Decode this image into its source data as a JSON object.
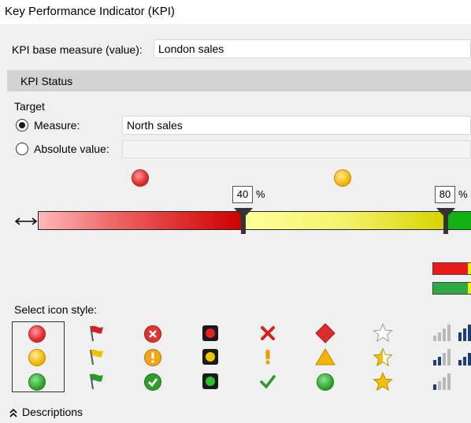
{
  "window": {
    "title": "Key Performance Indicator (KPI)"
  },
  "base_measure": {
    "label": "KPI base measure (value):",
    "value": "London sales"
  },
  "section": {
    "title": "KPI Status"
  },
  "target": {
    "label": "Target",
    "measure_label": "Measure:",
    "measure_value": "North sales",
    "absolute_label": "Absolute value:",
    "absolute_value": "",
    "selected": "measure"
  },
  "thresholds": {
    "low": "40",
    "high": "80",
    "unit": "%",
    "colors": {
      "red": "#d92020",
      "yellow": "#e6e600",
      "green": "#1bb21b"
    }
  },
  "icon_style": {
    "label": "Select icon style:",
    "selected_set": "traffic-light-balls"
  },
  "icon_sets": [
    {
      "name": "balls",
      "icons": [
        "red-ball-icon",
        "yellow-ball-icon",
        "green-ball-icon"
      ]
    },
    {
      "name": "flags",
      "icons": [
        "red-flag-icon",
        "yellow-flag-icon",
        "green-flag-icon"
      ]
    },
    {
      "name": "symbols-circled",
      "icons": [
        "red-x-circle-icon",
        "yellow-exclamation-circle-icon",
        "green-check-circle-icon"
      ]
    },
    {
      "name": "traffic-lights",
      "icons": [
        "traffic-light-red-icon",
        "traffic-light-yellow-icon",
        "traffic-light-green-icon"
      ]
    },
    {
      "name": "symbols",
      "icons": [
        "red-x-icon",
        "yellow-exclamation-icon",
        "green-check-icon"
      ]
    },
    {
      "name": "shapes",
      "icons": [
        "red-diamond-icon",
        "yellow-triangle-icon",
        "green-circle-icon"
      ]
    },
    {
      "name": "stars",
      "icons": [
        "empty-star-icon",
        "half-star-icon",
        "full-star-icon"
      ]
    },
    {
      "name": "signal-bars",
      "icons": [
        "signal-bars-low-icon",
        "signal-bars-mid-icon",
        "signal-bars-high-icon"
      ]
    }
  ],
  "descriptions": {
    "label": "Descriptions",
    "icon": "double-chevron-up-icon"
  }
}
